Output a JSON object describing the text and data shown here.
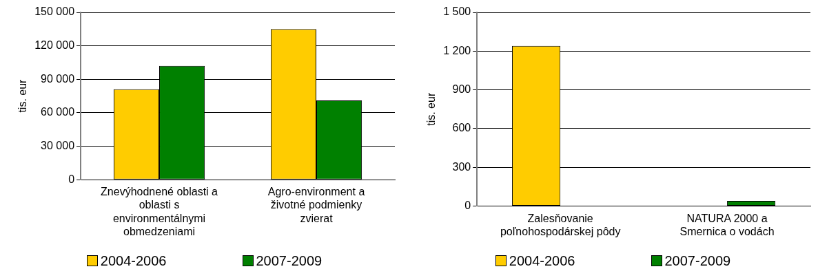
{
  "chart_data": [
    {
      "type": "bar",
      "ylabel": "tis. eur",
      "categories": [
        "Znevýhodnené oblasti a oblasti s environmentálnymi obmedzeniami",
        "Agro-environment a životné podmienky zvierat"
      ],
      "series": [
        {
          "name": "2004-2006",
          "color": "#ffcc00",
          "values": [
            81000,
            135000
          ]
        },
        {
          "name": "2007-2009",
          "color": "#008000",
          "values": [
            102000,
            71000
          ]
        }
      ],
      "ylim": [
        0,
        150000
      ],
      "yticks": [
        {
          "value": 0,
          "label": "0"
        },
        {
          "value": 30000,
          "label": "30 000"
        },
        {
          "value": 60000,
          "label": "60 000"
        },
        {
          "value": 90000,
          "label": "90 000"
        },
        {
          "value": 120000,
          "label": "120 000"
        },
        {
          "value": 150000,
          "label": "150 000"
        }
      ],
      "grid": "y",
      "legend": "bottom"
    },
    {
      "type": "bar",
      "ylabel": "tis. eur",
      "categories": [
        "Zalesňovanie poľnohospodárskej pôdy",
        "NATURA 2000 a Smernica o vodách"
      ],
      "series": [
        {
          "name": "2004-2006",
          "color": "#ffcc00",
          "values": [
            1240,
            0
          ]
        },
        {
          "name": "2007-2009",
          "color": "#008000",
          "values": [
            0,
            40
          ]
        }
      ],
      "ylim": [
        0,
        1500
      ],
      "yticks": [
        {
          "value": 0,
          "label": "0"
        },
        {
          "value": 300,
          "label": "300"
        },
        {
          "value": 600,
          "label": "600"
        },
        {
          "value": 900,
          "label": "900"
        },
        {
          "value": 1200,
          "label": "1 200"
        },
        {
          "value": 1500,
          "label": "1 500"
        }
      ],
      "grid": "y",
      "legend": "bottom"
    }
  ]
}
